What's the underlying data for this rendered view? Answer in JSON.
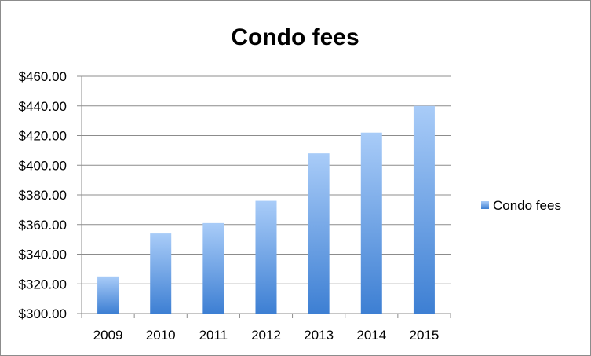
{
  "chart_data": {
    "type": "bar",
    "title": "Condo fees",
    "xlabel": "",
    "ylabel": "",
    "categories": [
      "2009",
      "2010",
      "2011",
      "2012",
      "2013",
      "2014",
      "2015"
    ],
    "series": [
      {
        "name": "Condo fees",
        "values": [
          325,
          354,
          361,
          376,
          408,
          422,
          440
        ]
      }
    ],
    "ylim": [
      300,
      460
    ],
    "y_ticks": [
      "$300.00",
      "$320.00",
      "$340.00",
      "$360.00",
      "$380.00",
      "$400.00",
      "$420.00",
      "$440.00",
      "$460.00"
    ],
    "grid": true,
    "legend_position": "right",
    "colors": {
      "bar_top": "#a9ccf8",
      "bar_bottom": "#3d7fd3",
      "grid": "#8c8c8c"
    }
  }
}
